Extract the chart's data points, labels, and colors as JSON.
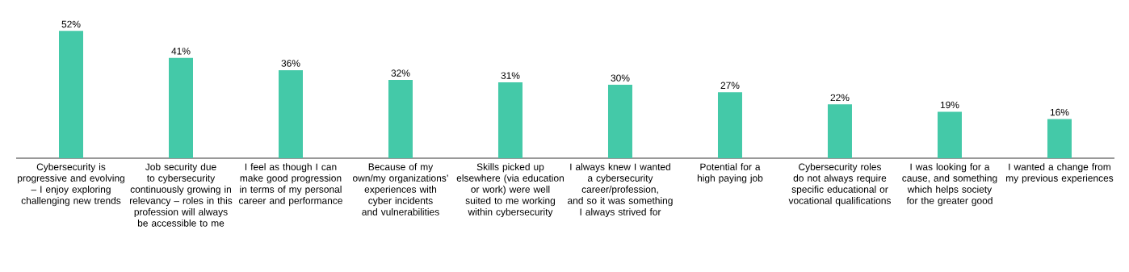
{
  "chart_data": {
    "type": "bar",
    "categories": [
      "Cybersecurity is progressive and evolving – I enjoy exploring challenging new trends",
      "Job security due to cybersecurity continuously growing in relevancy – roles in this profession will always be accessible to me",
      "I feel as though I can make good progression in terms of my personal career and performance",
      "Because of my own/my organizations’ experiences with cyber incidents and vulnerabilities",
      "Skills picked up elsewhere (via education or work) were well suited to me working within cybersecurity",
      "I always knew I wanted a cybersecurity career/profession, and so it was something I always strived for",
      "Potential for a high paying job",
      "Cybersecurity roles do not always require specific educational or vocational qualifications",
      "I was looking for a cause, and something which helps society for the greater good",
      "I wanted a change from my previous experiences"
    ],
    "values": [
      52,
      41,
      36,
      32,
      31,
      30,
      27,
      22,
      19,
      16
    ],
    "value_labels": [
      "52%",
      "41%",
      "36%",
      "32%",
      "31%",
      "30%",
      "27%",
      "22%",
      "19%",
      "16%"
    ],
    "color": "#44c9a8"
  }
}
